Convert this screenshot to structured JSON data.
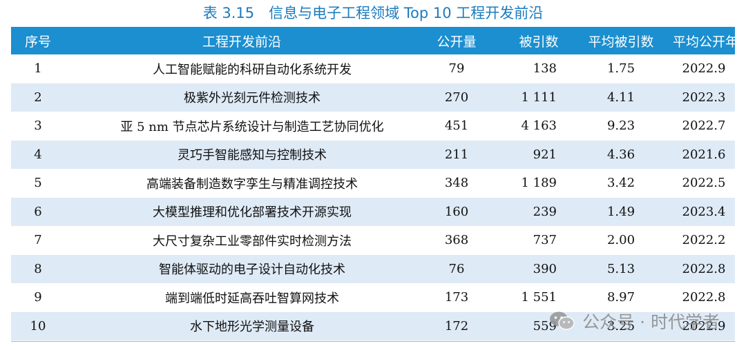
{
  "title": "表 3.15　信息与电子工程领域 Top 10 工程开发前沿",
  "columns": [
    "序号",
    "工程开发前沿",
    "公开量",
    "被引数",
    "平均被引数",
    "平均公开年"
  ],
  "rows": [
    {
      "no": "1",
      "name": "人工智能赋能的科研自动化系统开发",
      "pub": "79",
      "cite": "138",
      "avgc": "1.75",
      "year": "2022.9"
    },
    {
      "no": "2",
      "name": "极紫外光刻元件检测技术",
      "pub": "270",
      "cite": "1 111",
      "avgc": "4.11",
      "year": "2022.3"
    },
    {
      "no": "3",
      "name": "亚 5 nm 节点芯片系统设计与制造工艺协同优化",
      "pub": "451",
      "cite": "4 163",
      "avgc": "9.23",
      "year": "2022.7"
    },
    {
      "no": "4",
      "name": "灵巧手智能感知与控制技术",
      "pub": "211",
      "cite": "921",
      "avgc": "4.36",
      "year": "2021.6"
    },
    {
      "no": "5",
      "name": "高端装备制造数字孪生与精准调控技术",
      "pub": "348",
      "cite": "1 189",
      "avgc": "3.42",
      "year": "2022.5"
    },
    {
      "no": "6",
      "name": "大模型推理和优化部署技术开源实现",
      "pub": "160",
      "cite": "239",
      "avgc": "1.49",
      "year": "2023.4"
    },
    {
      "no": "7",
      "name": "大尺寸复杂工业零部件实时检测方法",
      "pub": "368",
      "cite": "737",
      "avgc": "2.00",
      "year": "2022.2"
    },
    {
      "no": "8",
      "name": "智能体驱动的电子设计自动化技术",
      "pub": "76",
      "cite": "390",
      "avgc": "5.13",
      "year": "2022.8"
    },
    {
      "no": "9",
      "name": "端到端低时延高吞吐智算网技术",
      "pub": "173",
      "cite": "1 551",
      "avgc": "8.97",
      "year": "2022.8"
    },
    {
      "no": "10",
      "name": "水下地形光学测量设备",
      "pub": "172",
      "cite": "559",
      "avgc": "3.25",
      "year": "2022.9"
    }
  ],
  "watermark": {
    "text": "公众号 · 时代学者",
    "icon": "wechat-logo-icon"
  },
  "colors": {
    "header_bg": "#1b8fd0",
    "title": "#1b7bbf",
    "stripe": "#deeaf6"
  }
}
